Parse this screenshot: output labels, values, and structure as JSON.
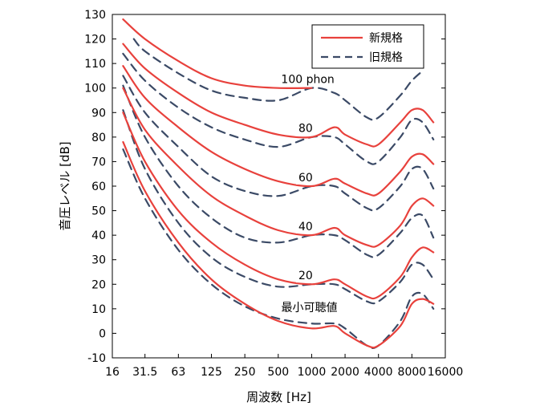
{
  "chart_data": {
    "type": "line",
    "xlabel": "周波数 [Hz]",
    "ylabel": "音圧レベル [dB]",
    "x_scale": "log2",
    "xlim": [
      16,
      16000
    ],
    "ylim": [
      -10,
      130
    ],
    "x_ticks": [
      16,
      31.5,
      63,
      125,
      250,
      500,
      1000,
      2000,
      4000,
      8000,
      16000
    ],
    "x_tick_labels": [
      "16",
      "31.5",
      "63",
      "125",
      "250",
      "500",
      "1000",
      "2000",
      "4000",
      "8000",
      "16000"
    ],
    "y_ticks": [
      -10,
      0,
      10,
      20,
      30,
      40,
      50,
      60,
      70,
      80,
      90,
      100,
      110,
      120,
      130
    ],
    "y_tick_labels": [
      "-10",
      "0",
      "10",
      "20",
      "30",
      "40",
      "50",
      "60",
      "70",
      "80",
      "90",
      "100",
      "110",
      "120",
      "130"
    ],
    "grid": false,
    "legend": {
      "position": "top-right",
      "entries": [
        {
          "name": "新規格",
          "style": "solid",
          "color": "#e8413c"
        },
        {
          "name": "旧規格",
          "style": "dashed",
          "color": "#3b4a66"
        }
      ]
    },
    "curve_labels": [
      {
        "text": "100 phon",
        "x": 1000,
        "y": 102
      },
      {
        "text": "80",
        "x": 800,
        "y": 82
      },
      {
        "text": "60",
        "x": 800,
        "y": 62
      },
      {
        "text": "40",
        "x": 800,
        "y": 42
      },
      {
        "text": "20",
        "x": 800,
        "y": 22
      },
      {
        "text": "最小可聴値",
        "x": 800,
        "y": 9
      }
    ],
    "series": [
      {
        "name": "新規格",
        "level": "100 phon",
        "style": "solid",
        "x": [
          20,
          31.5,
          63,
          125,
          250,
          500,
          1000
        ],
        "y": [
          128,
          120,
          111,
          104,
          101,
          100,
          100
        ]
      },
      {
        "name": "新規格",
        "level": "80",
        "style": "solid",
        "x": [
          20,
          31.5,
          63,
          125,
          250,
          500,
          1000,
          1600,
          2000,
          3150,
          4000,
          6300,
          8000,
          10000,
          12500
        ],
        "y": [
          118,
          108,
          98,
          90,
          85,
          81,
          80,
          84,
          81,
          77,
          77,
          86,
          91,
          91,
          86
        ]
      },
      {
        "name": "新規格",
        "level": "60",
        "style": "solid",
        "x": [
          20,
          31.5,
          63,
          125,
          250,
          500,
          1000,
          1600,
          2000,
          3150,
          4000,
          6300,
          8000,
          10000,
          12500
        ],
        "y": [
          109,
          96,
          84,
          74,
          67,
          62,
          60,
          63,
          61,
          57,
          57,
          66,
          72,
          73,
          69
        ]
      },
      {
        "name": "新規格",
        "level": "40",
        "style": "solid",
        "x": [
          20,
          31.5,
          63,
          125,
          250,
          500,
          1000,
          1600,
          2000,
          3150,
          4000,
          6300,
          8000,
          10000,
          12500
        ],
        "y": [
          100,
          83,
          68,
          56,
          48,
          42,
          40,
          43,
          40,
          36,
          36,
          44,
          52,
          55,
          52
        ]
      },
      {
        "name": "新規格",
        "level": "20",
        "style": "solid",
        "x": [
          20,
          31.5,
          63,
          125,
          250,
          500,
          1000,
          1600,
          2000,
          3150,
          4000,
          6300,
          8000,
          10000,
          12500
        ],
        "y": [
          90,
          70,
          50,
          37,
          28,
          22,
          20,
          22,
          20,
          15,
          15,
          23,
          31,
          35,
          33
        ]
      },
      {
        "name": "新規格",
        "level": "最小可聴値",
        "style": "solid",
        "x": [
          20,
          31.5,
          63,
          125,
          250,
          500,
          1000,
          1600,
          2000,
          3150,
          4000,
          6300,
          8000,
          10000,
          12500
        ],
        "y": [
          78,
          58,
          37,
          22,
          12,
          5,
          2,
          3,
          0,
          -5,
          -5,
          3,
          12,
          14,
          12
        ]
      },
      {
        "name": "旧規格",
        "level": "100 phon",
        "style": "dashed",
        "x": [
          25,
          31.5,
          63,
          125,
          250,
          500,
          1000,
          1600,
          2000,
          3150,
          4000,
          6300,
          8000,
          10000
        ],
        "y": [
          120,
          115,
          106,
          99,
          96,
          95,
          100,
          98,
          95,
          88,
          88,
          97,
          103,
          107
        ]
      },
      {
        "name": "旧規格",
        "level": "80",
        "style": "dashed",
        "x": [
          20,
          31.5,
          63,
          125,
          250,
          500,
          1000,
          1600,
          2000,
          3150,
          4000,
          6300,
          8000,
          10000,
          12500
        ],
        "y": [
          114,
          103,
          92,
          84,
          79,
          76,
          80,
          80,
          77,
          70,
          70,
          80,
          87,
          86,
          79
        ]
      },
      {
        "name": "旧規格",
        "level": "60",
        "style": "dashed",
        "x": [
          20,
          31.5,
          63,
          125,
          250,
          500,
          1000,
          1600,
          2000,
          3150,
          4000,
          6300,
          8000,
          10000,
          12500
        ],
        "y": [
          105,
          90,
          76,
          64,
          58,
          56,
          60,
          60,
          57,
          51,
          51,
          60,
          67,
          67,
          59
        ]
      },
      {
        "name": "旧規格",
        "level": "40",
        "style": "dashed",
        "x": [
          20,
          31.5,
          63,
          125,
          250,
          500,
          1000,
          1600,
          2000,
          3150,
          4000,
          6300,
          8000,
          10000,
          12500
        ],
        "y": [
          101,
          80,
          60,
          47,
          39,
          37,
          40,
          40,
          38,
          32,
          32,
          41,
          47,
          48,
          39
        ]
      },
      {
        "name": "旧規格",
        "level": "20",
        "style": "dashed",
        "x": [
          20,
          31.5,
          63,
          125,
          250,
          500,
          1000,
          1600,
          2000,
          3150,
          4000,
          6300,
          8000,
          10000,
          12500
        ],
        "y": [
          91,
          67,
          45,
          31,
          23,
          19,
          20,
          20,
          18,
          13,
          13,
          21,
          28,
          28,
          22
        ]
      },
      {
        "name": "旧規格",
        "level": "最小可聴値",
        "style": "dashed",
        "x": [
          20,
          31.5,
          63,
          125,
          250,
          500,
          1000,
          1600,
          2000,
          3150,
          4000,
          6300,
          8000,
          10000,
          12500
        ],
        "y": [
          75,
          55,
          34,
          20,
          11,
          6,
          4,
          4,
          2,
          -5,
          -5,
          5,
          15,
          16,
          10
        ]
      }
    ]
  }
}
